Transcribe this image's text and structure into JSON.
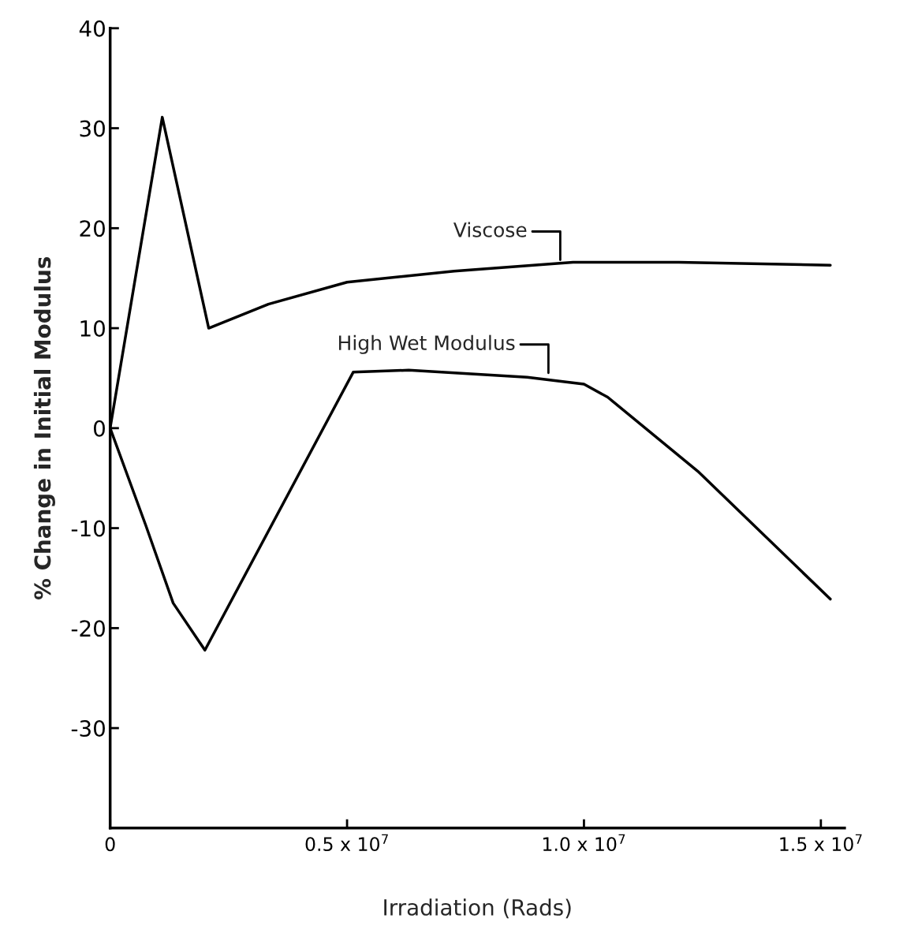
{
  "chart_data": {
    "type": "line",
    "xlabel": "Irradiation (Rads)",
    "ylabel": "% Change in Initial Modulus",
    "xlim": [
      0,
      15500000
    ],
    "ylim": [
      -40,
      40
    ],
    "xticks": [
      {
        "value": 0,
        "label": "0"
      },
      {
        "value": 5000000,
        "label": "0.5 x 10$^{7}$"
      },
      {
        "value": 10000000,
        "label": "1.0 x 10$^{7}$"
      },
      {
        "value": 15000000,
        "label": "1.5 x 10$^{7}$"
      }
    ],
    "yticks": [
      -30,
      -20,
      -10,
      0,
      10,
      20,
      30,
      40
    ],
    "grid": false,
    "marker": "none",
    "line_style": "solid",
    "series": [
      {
        "color": "#000000",
        "x": [
          0,
          1100000,
          2080000,
          3340000,
          5000000,
          7260000,
          9770000,
          12000000,
          15200000
        ],
        "values": [
          0,
          31.1,
          10,
          12.4,
          14.6,
          15.7,
          16.6,
          16.6,
          16.3
        ]
      },
      {
        "color": "#000000",
        "x": [
          0,
          750000,
          1330000,
          2000000,
          5130000,
          6300000,
          8800000,
          10000000,
          10500000,
          12400000,
          15200000
        ],
        "values": [
          0,
          -9.7,
          -17.5,
          -22.2,
          5.6,
          5.8,
          5.1,
          4.4,
          3.1,
          -4.3,
          -17.1
        ]
      }
    ],
    "annotations": [
      {
        "text": "Viscose",
        "x": 9500000,
        "y": 16.6
      },
      {
        "text": "High Wet Modulus",
        "x": 9250000,
        "y": 5.3
      }
    ]
  }
}
